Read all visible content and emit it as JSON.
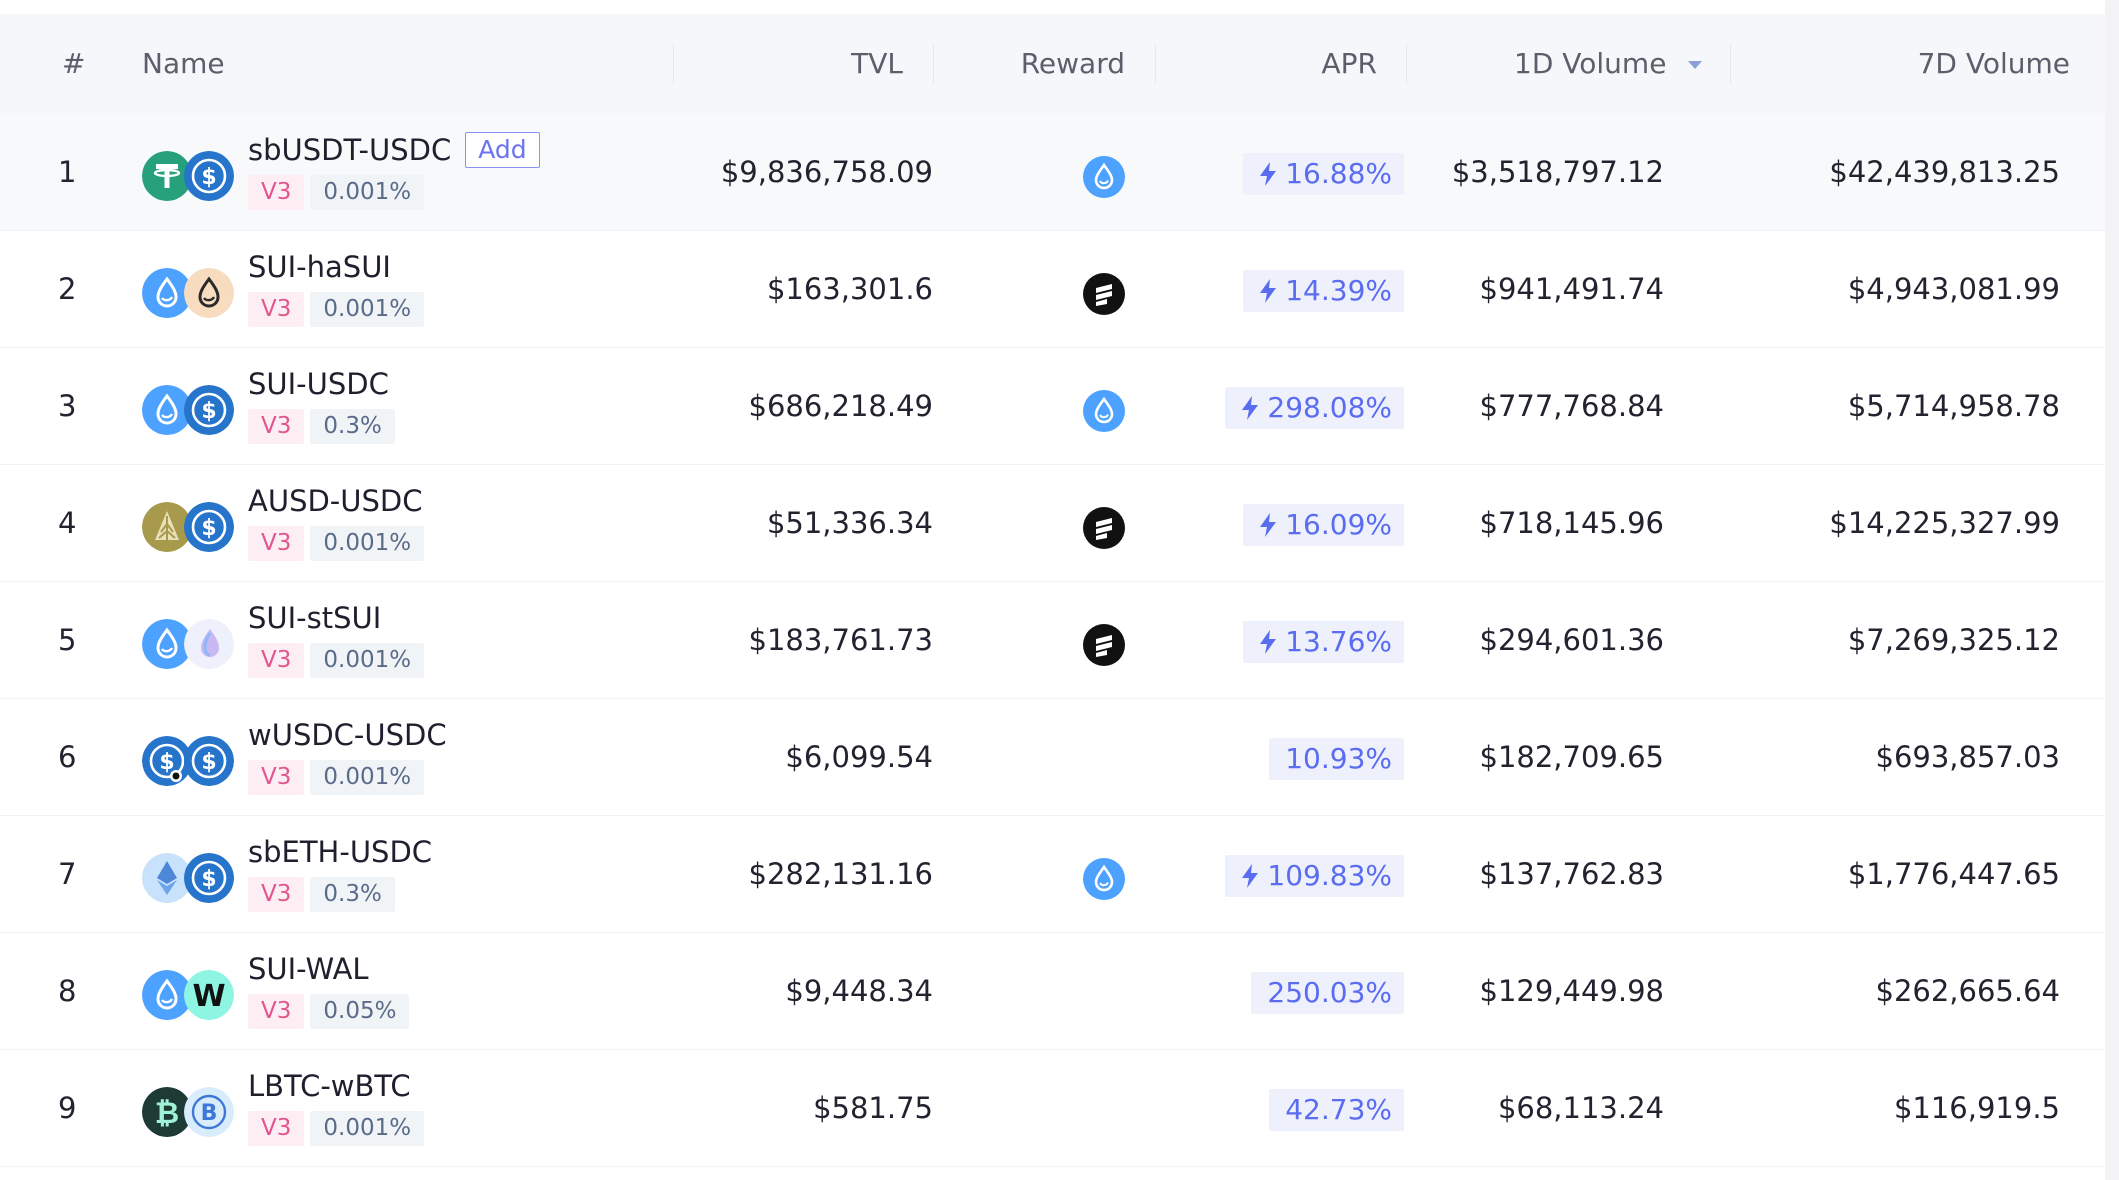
{
  "header": {
    "index": "#",
    "name": "Name",
    "tvl": "TVL",
    "reward": "Reward",
    "apr": "APR",
    "vol1d": "1D Volume",
    "vol7d": "7D Volume"
  },
  "add_label": "Add",
  "rows": [
    {
      "index": "1",
      "name": "sbUSDT-USDC",
      "version": "V3",
      "fee": "0.001%",
      "tvl": "$9,836,758.09",
      "reward_icon": "sui-drop-icon",
      "apr": "16.88%",
      "apr_boost": true,
      "vol1d": "$3,518,797.12",
      "vol7d": "$42,439,813.25",
      "coin_a": "usdt-icon",
      "coin_b": "usdc-icon"
    },
    {
      "index": "2",
      "name": "SUI-haSUI",
      "version": "V3",
      "fee": "0.001%",
      "tvl": "$163,301.6",
      "reward_icon": "haedal-icon",
      "apr": "14.39%",
      "apr_boost": true,
      "vol1d": "$941,491.74",
      "vol7d": "$4,943,081.99",
      "coin_a": "sui-icon",
      "coin_b": "hasui-icon"
    },
    {
      "index": "3",
      "name": "SUI-USDC",
      "version": "V3",
      "fee": "0.3%",
      "tvl": "$686,218.49",
      "reward_icon": "sui-drop-icon",
      "apr": "298.08%",
      "apr_boost": true,
      "vol1d": "$777,768.84",
      "vol7d": "$5,714,958.78",
      "coin_a": "sui-icon",
      "coin_b": "usdc-icon"
    },
    {
      "index": "4",
      "name": "AUSD-USDC",
      "version": "V3",
      "fee": "0.001%",
      "tvl": "$51,336.34",
      "reward_icon": "haedal-icon",
      "apr": "16.09%",
      "apr_boost": true,
      "vol1d": "$718,145.96",
      "vol7d": "$14,225,327.99",
      "coin_a": "ausd-icon",
      "coin_b": "usdc-icon"
    },
    {
      "index": "5",
      "name": "SUI-stSUI",
      "version": "V3",
      "fee": "0.001%",
      "tvl": "$183,761.73",
      "reward_icon": "haedal-icon",
      "apr": "13.76%",
      "apr_boost": true,
      "vol1d": "$294,601.36",
      "vol7d": "$7,269,325.12",
      "coin_a": "sui-icon",
      "coin_b": "stsui-icon"
    },
    {
      "index": "6",
      "name": "wUSDC-USDC",
      "version": "V3",
      "fee": "0.001%",
      "tvl": "$6,099.54",
      "reward_icon": "",
      "apr": "10.93%",
      "apr_boost": false,
      "vol1d": "$182,709.65",
      "vol7d": "$693,857.03",
      "coin_a": "wusdc-icon",
      "coin_b": "usdc-icon"
    },
    {
      "index": "7",
      "name": "sbETH-USDC",
      "version": "V3",
      "fee": "0.3%",
      "tvl": "$282,131.16",
      "reward_icon": "sui-drop-icon",
      "apr": "109.83%",
      "apr_boost": true,
      "vol1d": "$137,762.83",
      "vol7d": "$1,776,447.65",
      "coin_a": "eth-icon",
      "coin_b": "usdc-icon"
    },
    {
      "index": "8",
      "name": "SUI-WAL",
      "version": "V3",
      "fee": "0.05%",
      "tvl": "$9,448.34",
      "reward_icon": "",
      "apr": "250.03%",
      "apr_boost": false,
      "vol1d": "$129,449.98",
      "vol7d": "$262,665.64",
      "coin_a": "sui-icon",
      "coin_b": "wal-icon"
    },
    {
      "index": "9",
      "name": "LBTC-wBTC",
      "version": "V3",
      "fee": "0.001%",
      "tvl": "$581.75",
      "reward_icon": "",
      "apr": "42.73%",
      "apr_boost": false,
      "vol1d": "$68,113.24",
      "vol7d": "$116,919.5",
      "coin_a": "lbtc-icon",
      "coin_b": "wbtc-icon"
    }
  ],
  "colors": {
    "accent": "#5a6cf0",
    "apr_bg": "#eef0fb",
    "version_tag": "#e2568f",
    "sui_blue": "#4da2ff"
  }
}
